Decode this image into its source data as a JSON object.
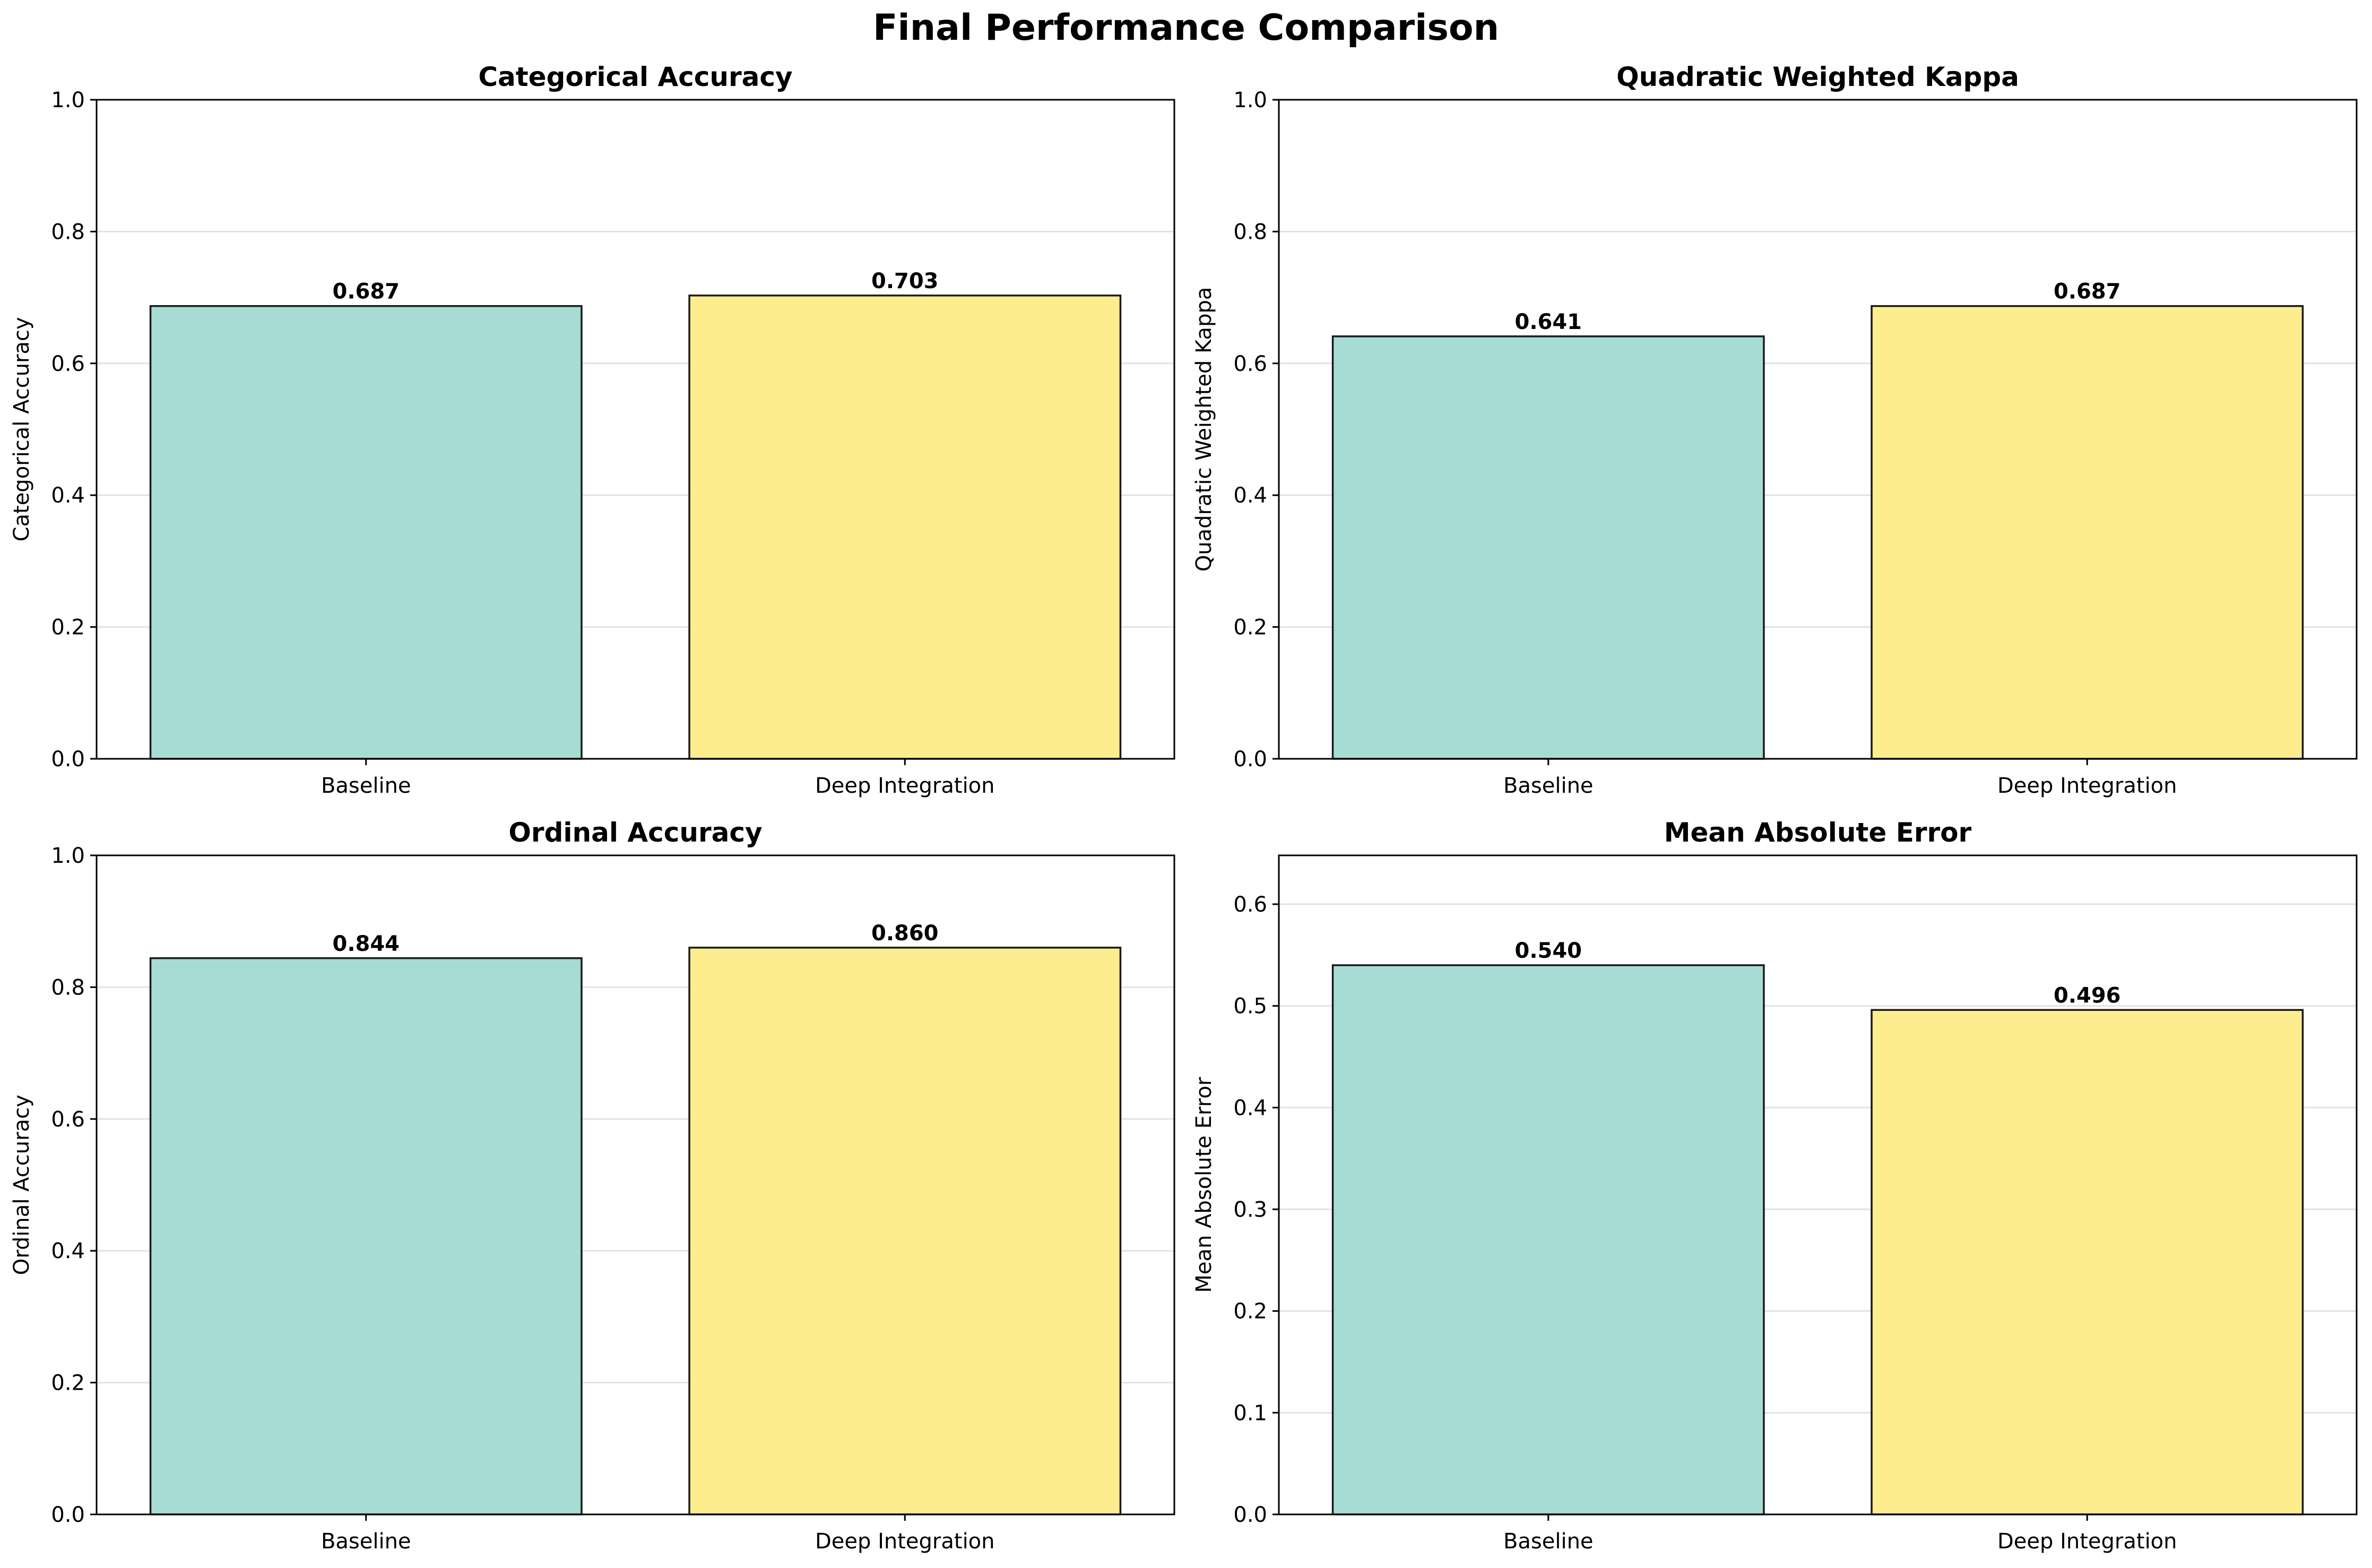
{
  "figure": {
    "title": "Final Performance Comparison",
    "bar_edge_color": "#1a1a1a",
    "grid": true
  },
  "chart_data": [
    {
      "type": "bar",
      "title": "Categorical Accuracy",
      "xlabel": "",
      "ylabel": "Categorical Accuracy",
      "categories": [
        "Baseline",
        "Deep Integration"
      ],
      "values": [
        0.687,
        0.703
      ],
      "value_labels": [
        "0.687",
        "0.703"
      ],
      "colors": [
        "#a6dcd4",
        "#fded8e"
      ],
      "ylim": [
        0,
        1.0
      ],
      "yticks": [
        0.0,
        0.2,
        0.4,
        0.6,
        0.8,
        1.0
      ],
      "ytick_labels": [
        "0.0",
        "0.2",
        "0.4",
        "0.6",
        "0.8",
        "1.0"
      ]
    },
    {
      "type": "bar",
      "title": "Quadratic Weighted Kappa",
      "xlabel": "",
      "ylabel": "Quadratic Weighted Kappa",
      "categories": [
        "Baseline",
        "Deep Integration"
      ],
      "values": [
        0.641,
        0.687
      ],
      "value_labels": [
        "0.641",
        "0.687"
      ],
      "colors": [
        "#a6dcd4",
        "#fded8e"
      ],
      "ylim": [
        0,
        1.0
      ],
      "yticks": [
        0.0,
        0.2,
        0.4,
        0.6,
        0.8,
        1.0
      ],
      "ytick_labels": [
        "0.0",
        "0.2",
        "0.4",
        "0.6",
        "0.8",
        "1.0"
      ]
    },
    {
      "type": "bar",
      "title": "Ordinal Accuracy",
      "xlabel": "",
      "ylabel": "Ordinal Accuracy",
      "categories": [
        "Baseline",
        "Deep Integration"
      ],
      "values": [
        0.844,
        0.86
      ],
      "value_labels": [
        "0.844",
        "0.860"
      ],
      "colors": [
        "#a6dcd4",
        "#fded8e"
      ],
      "ylim": [
        0,
        1.0
      ],
      "yticks": [
        0.0,
        0.2,
        0.4,
        0.6,
        0.8,
        1.0
      ],
      "ytick_labels": [
        "0.0",
        "0.2",
        "0.4",
        "0.6",
        "0.8",
        "1.0"
      ]
    },
    {
      "type": "bar",
      "title": "Mean Absolute Error",
      "xlabel": "",
      "ylabel": "Mean Absolute Error",
      "categories": [
        "Baseline",
        "Deep Integration"
      ],
      "values": [
        0.54,
        0.496
      ],
      "value_labels": [
        "0.540",
        "0.496"
      ],
      "colors": [
        "#a6dcd4",
        "#fded8e"
      ],
      "ylim": [
        0,
        0.648
      ],
      "yticks": [
        0.0,
        0.1,
        0.2,
        0.3,
        0.4,
        0.5,
        0.6
      ],
      "ytick_labels": [
        "0.0",
        "0.1",
        "0.2",
        "0.3",
        "0.4",
        "0.5",
        "0.6"
      ]
    }
  ]
}
